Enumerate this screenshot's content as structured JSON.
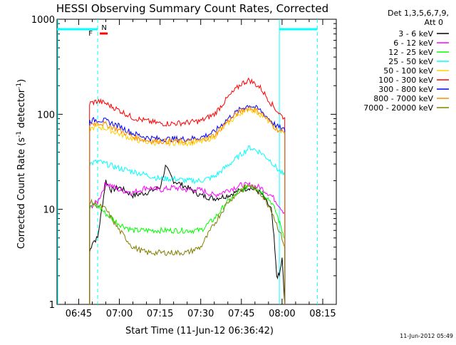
{
  "chart_data": {
    "type": "line",
    "title": "HESSI Observing Summary Count Rates, Corrected",
    "xlabel": "Start Time (11-Jun-12 06:36:42)",
    "ylabel_parts": [
      "Corrected Count Rate (s",
      "-1",
      " detector",
      "-1",
      ")"
    ],
    "y_scale": "log",
    "ylim": [
      1,
      1000
    ],
    "y_ticks": [
      {
        "value": 1,
        "label": "1"
      },
      {
        "value": 10,
        "label": "10"
      },
      {
        "value": 100,
        "label": "100"
      },
      {
        "value": 1000,
        "label": "1000"
      }
    ],
    "xlim": [
      "06:37",
      "08:20"
    ],
    "x_ticks": [
      "06:45",
      "07:00",
      "07:15",
      "07:30",
      "07:45",
      "08:00",
      "08:15"
    ],
    "legend": {
      "placement": "right",
      "header": [
        "Det 1,3,5,6,7,9,",
        "Att 0"
      ]
    },
    "flags": {
      "f_label": "F",
      "n_label": "N",
      "f_color": "#ff0000",
      "n_color": "#00ffff"
    },
    "footer_date": "11-Jun-2012 05:49",
    "series": [
      {
        "name": "3 - 6 keV",
        "color": "#000000",
        "x": [
          "06:49",
          "06:50",
          "06:52",
          "06:55",
          "06:57",
          "07:00",
          "07:05",
          "07:10",
          "07:15",
          "07:17",
          "07:20",
          "07:25",
          "07:30",
          "07:35",
          "07:40",
          "07:45",
          "07:48",
          "07:52",
          "07:56",
          "07:57",
          "07:58",
          "07:59",
          "08:00",
          "08:01"
        ],
        "y": [
          3.5,
          4.5,
          5,
          20,
          16,
          17,
          14,
          15,
          17,
          28,
          20,
          17,
          14,
          13,
          14,
          16,
          17,
          15,
          10,
          5,
          2,
          2,
          3,
          1
        ]
      },
      {
        "name": "6 - 12 keV",
        "color": "#ff00ff",
        "x": [
          "06:49",
          "06:50",
          "06:52",
          "06:55",
          "07:00",
          "07:05",
          "07:10",
          "07:15",
          "07:20",
          "07:25",
          "07:30",
          "07:35",
          "07:40",
          "07:45",
          "07:48",
          "07:52",
          "07:56",
          "07:58",
          "08:00",
          "08:01"
        ],
        "y": [
          10,
          11,
          12,
          19,
          16,
          15,
          17,
          16,
          17,
          16,
          16,
          14,
          16,
          18,
          18,
          17,
          14,
          12,
          10,
          9
        ]
      },
      {
        "name": "12 - 25 keV",
        "color": "#00ff00",
        "x": [
          "06:49",
          "06:50",
          "06:52",
          "06:55",
          "07:00",
          "07:05",
          "07:10",
          "07:15",
          "07:20",
          "07:25",
          "07:30",
          "07:35",
          "07:40",
          "07:45",
          "07:48",
          "07:52",
          "07:56",
          "07:58",
          "08:00",
          "08:01"
        ],
        "y": [
          10,
          11,
          11,
          9,
          7,
          6,
          6,
          6,
          6,
          6,
          6,
          8,
          12,
          16,
          18,
          16,
          12,
          9,
          6,
          5
        ]
      },
      {
        "name": "25 - 50 keV",
        "color": "#00ffff",
        "x": [
          "06:49",
          "06:52",
          "06:55",
          "07:00",
          "07:05",
          "07:10",
          "07:15",
          "07:20",
          "07:25",
          "07:30",
          "07:35",
          "07:40",
          "07:45",
          "07:48",
          "07:52",
          "07:56",
          "07:58",
          "08:00",
          "08:01"
        ],
        "y": [
          30,
          32,
          30,
          27,
          25,
          23,
          21,
          21,
          20,
          20,
          22,
          29,
          38,
          45,
          40,
          32,
          27,
          24,
          22
        ]
      },
      {
        "name": "50 - 100 keV",
        "color": "#ffd000",
        "x": [
          "06:49",
          "06:52",
          "06:55",
          "07:00",
          "07:05",
          "07:10",
          "07:15",
          "07:20",
          "07:25",
          "07:30",
          "07:35",
          "07:40",
          "07:45",
          "07:48",
          "07:52",
          "07:56",
          "07:58",
          "08:00",
          "08:01"
        ],
        "y": [
          70,
          74,
          71,
          62,
          55,
          51,
          50,
          50,
          50,
          51,
          58,
          80,
          105,
          115,
          100,
          80,
          70,
          65,
          62
        ]
      },
      {
        "name": "100 - 300 keV",
        "color": "#ff0000",
        "x": [
          "06:49",
          "06:52",
          "06:55",
          "07:00",
          "07:05",
          "07:10",
          "07:15",
          "07:20",
          "07:25",
          "07:30",
          "07:35",
          "07:40",
          "07:45",
          "07:48",
          "07:52",
          "07:56",
          "07:58",
          "08:00",
          "08:01"
        ],
        "y": [
          130,
          138,
          130,
          110,
          92,
          85,
          80,
          80,
          82,
          85,
          100,
          150,
          210,
          230,
          190,
          130,
          110,
          95,
          92
        ]
      },
      {
        "name": "300 - 800 keV",
        "color": "#0000ff",
        "x": [
          "06:49",
          "06:52",
          "06:55",
          "07:00",
          "07:05",
          "07:10",
          "07:15",
          "07:20",
          "07:25",
          "07:30",
          "07:35",
          "07:40",
          "07:45",
          "07:48",
          "07:52",
          "07:56",
          "07:58",
          "08:00",
          "08:01"
        ],
        "y": [
          85,
          88,
          85,
          75,
          63,
          57,
          55,
          55,
          55,
          57,
          65,
          90,
          115,
          125,
          110,
          85,
          75,
          70,
          68
        ]
      },
      {
        "name": "800 - 7000 keV",
        "color": "#ff8c00",
        "x": [
          "06:49",
          "06:52",
          "06:55",
          "07:00",
          "07:05",
          "07:10",
          "07:15",
          "07:20",
          "07:25",
          "07:30",
          "07:35",
          "07:40",
          "07:45",
          "07:48",
          "07:52",
          "07:56",
          "07:58",
          "08:00",
          "08:01"
        ],
        "y": [
          78,
          82,
          78,
          68,
          58,
          53,
          52,
          52,
          52,
          53,
          60,
          85,
          110,
          118,
          105,
          80,
          70,
          66,
          64
        ]
      },
      {
        "name": "7000 - 20000 keV",
        "color": "#808000",
        "x": [
          "06:49",
          "06:52",
          "06:55",
          "07:00",
          "07:05",
          "07:10",
          "07:15",
          "07:20",
          "07:25",
          "07:30",
          "07:35",
          "07:40",
          "07:45",
          "07:48",
          "07:52",
          "07:56",
          "07:58",
          "08:00",
          "08:01"
        ],
        "y": [
          12,
          11,
          10,
          6,
          4,
          3.5,
          3.5,
          3.5,
          3.5,
          4,
          7,
          12,
          16,
          18,
          15,
          10,
          7,
          5,
          4
        ]
      }
    ],
    "annotations": {
      "night_intervals": [
        [
          "06:37",
          "06:52"
        ],
        [
          "07:59",
          "08:13"
        ]
      ],
      "vertical_markers": [
        "06:52",
        "07:59",
        "08:13"
      ]
    }
  }
}
